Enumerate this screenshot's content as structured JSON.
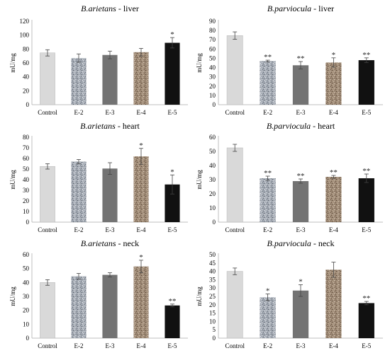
{
  "figure": {
    "categories": [
      "Control",
      "E-2",
      "E-3",
      "E-4",
      "E-5"
    ],
    "bar_colors": {
      "Control": "#d9d9d9",
      "E-2": "#a6acb5",
      "E-3": "#737373",
      "E-4": "#a08c78",
      "E-5": "#111111"
    }
  },
  "chart_data": [
    {
      "type": "bar",
      "species": "B.arietans",
      "tissue": " - liver",
      "ylabel": "mU/mg",
      "categories": [
        "Control",
        "E-2",
        "E-3",
        "E-4",
        "E-5"
      ],
      "values": [
        74.5,
        67,
        71.5,
        75.5,
        89
      ],
      "errors": [
        4.5,
        6,
        5.5,
        5.5,
        7.5
      ],
      "significance": [
        "",
        "",
        "",
        "",
        "*"
      ],
      "ylim": [
        0,
        120
      ],
      "yticks": [
        0,
        20,
        40,
        60,
        80,
        100,
        120
      ],
      "grid": false
    },
    {
      "type": "bar",
      "species": "B.parviocula",
      "tissue": " - liver",
      "ylabel": "mU/mg",
      "categories": [
        "Control",
        "E-2",
        "E-3",
        "E-4",
        "E-5"
      ],
      "values": [
        74.5,
        47,
        42.5,
        45.5,
        48
      ],
      "errors": [
        4,
        1,
        4,
        5,
        2.5
      ],
      "significance": [
        "",
        "**",
        "**",
        "*",
        "**"
      ],
      "ylim": [
        0,
        90
      ],
      "yticks": [
        0,
        10,
        20,
        30,
        40,
        50,
        60,
        70,
        80,
        90
      ],
      "grid": false
    },
    {
      "type": "bar",
      "species": "B.arietans",
      "tissue": " - heart",
      "ylabel": "mU/mg",
      "categories": [
        "Control",
        "E-2",
        "E-3",
        "E-4",
        "E-5"
      ],
      "values": [
        52.5,
        57,
        50.5,
        62,
        35.5
      ],
      "errors": [
        2.5,
        2,
        5.5,
        7.5,
        9
      ],
      "significance": [
        "",
        "",
        "",
        "*",
        "*"
      ],
      "ylim": [
        0,
        80
      ],
      "yticks": [
        0,
        10,
        20,
        30,
        40,
        50,
        60,
        70,
        80
      ],
      "grid": false
    },
    {
      "type": "bar",
      "species": "B.parviocula",
      "tissue": " - heart",
      "ylabel": "mU/mg",
      "categories": [
        "Control",
        "E-2",
        "E-3",
        "E-4",
        "E-5"
      ],
      "values": [
        52.5,
        31,
        29,
        32,
        31
      ],
      "errors": [
        2.5,
        1.5,
        1.5,
        1,
        3
      ],
      "significance": [
        "",
        "**",
        "**",
        "**",
        "**"
      ],
      "ylim": [
        0,
        60
      ],
      "yticks": [
        0,
        10,
        20,
        30,
        40,
        50,
        60
      ],
      "grid": false
    },
    {
      "type": "bar",
      "species": "B.arietans",
      "tissue": " - neck",
      "ylabel": "mU/mg",
      "categories": [
        "Control",
        "E-2",
        "E-3",
        "E-4",
        "E-5"
      ],
      "values": [
        40,
        44.5,
        45.5,
        51.5,
        23.5
      ],
      "errors": [
        2,
        2,
        1.5,
        4.5,
        1
      ],
      "significance": [
        "",
        "",
        "",
        "*",
        "**"
      ],
      "ylim": [
        0,
        60
      ],
      "yticks": [
        0,
        10,
        20,
        30,
        40,
        50,
        60
      ],
      "grid": false
    },
    {
      "type": "bar",
      "species": "B.parviocula",
      "tissue": " - neck",
      "ylabel": "mU/mg",
      "categories": [
        "Control",
        "E-2",
        "E-3",
        "E-4",
        "E-5"
      ],
      "values": [
        40,
        24.5,
        28.5,
        41,
        21
      ],
      "errors": [
        2,
        2,
        3.5,
        4.5,
        1
      ],
      "significance": [
        "",
        "*",
        "*",
        "",
        "**"
      ],
      "ylim": [
        0,
        50
      ],
      "yticks": [
        0,
        5,
        10,
        15,
        20,
        25,
        30,
        35,
        40,
        45,
        50
      ],
      "grid": false
    }
  ]
}
